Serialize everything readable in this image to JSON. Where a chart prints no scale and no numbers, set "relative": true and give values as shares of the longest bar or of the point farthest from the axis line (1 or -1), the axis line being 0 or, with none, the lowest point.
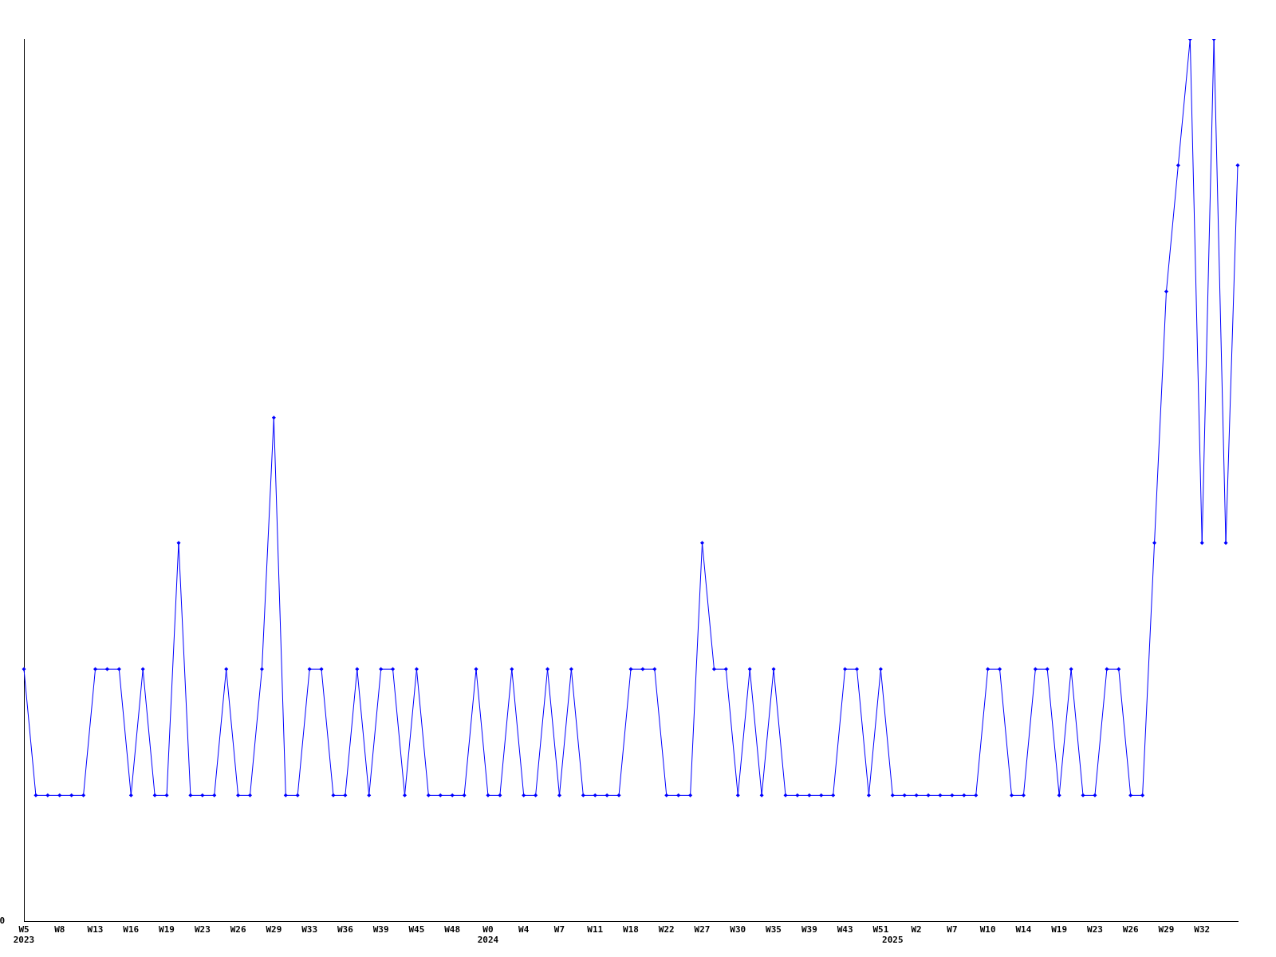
{
  "chart_data": {
    "type": "line",
    "relative": true,
    "marker": "diamond",
    "line_style": "solid",
    "grid": false,
    "legend": false,
    "annotations": [
      "0"
    ],
    "categories": [
      "W5\n2023",
      null,
      null,
      "W8",
      null,
      null,
      "W13",
      null,
      null,
      "W16",
      null,
      null,
      "W19",
      null,
      null,
      "W23",
      null,
      null,
      "W26",
      null,
      null,
      "W29",
      null,
      null,
      "W33",
      null,
      null,
      "W36",
      null,
      null,
      "W39",
      null,
      null,
      "W45",
      null,
      null,
      "W48",
      null,
      null,
      "W0\n2024",
      null,
      null,
      "W4",
      null,
      null,
      "W7",
      null,
      null,
      "W11",
      null,
      null,
      "W18",
      null,
      null,
      "W22",
      null,
      null,
      "W27",
      null,
      null,
      "W30",
      null,
      null,
      "W35",
      null,
      null,
      "W39",
      null,
      null,
      "W43",
      null,
      null,
      "W51",
      "\n2025",
      null,
      "W2",
      null,
      null,
      "W7",
      null,
      null,
      "W10",
      null,
      null,
      "W14",
      null,
      null,
      "W19",
      null,
      null,
      "W23",
      null,
      null,
      "W26",
      null,
      null,
      "W29",
      null,
      null,
      "W32",
      null,
      null,
      null
    ],
    "series": [
      {
        "color": "#0000ff",
        "values": [
          0.286,
          0.143,
          0.143,
          0.143,
          0.143,
          0.143,
          0.286,
          0.286,
          0.286,
          0.143,
          0.286,
          0.143,
          0.143,
          0.429,
          0.143,
          0.143,
          0.143,
          0.286,
          0.143,
          0.143,
          0.286,
          0.571,
          0.143,
          0.143,
          0.286,
          0.286,
          0.143,
          0.143,
          0.286,
          0.143,
          0.286,
          0.286,
          0.143,
          0.286,
          0.143,
          0.143,
          0.143,
          0.143,
          0.286,
          0.143,
          0.143,
          0.286,
          0.143,
          0.143,
          0.286,
          0.143,
          0.286,
          0.143,
          0.143,
          0.143,
          0.143,
          0.286,
          0.286,
          0.286,
          0.143,
          0.143,
          0.143,
          0.429,
          0.286,
          0.286,
          0.143,
          0.286,
          0.143,
          0.286,
          0.143,
          0.143,
          0.143,
          0.143,
          0.143,
          0.286,
          0.286,
          0.143,
          0.286,
          0.143,
          0.143,
          0.143,
          0.143,
          0.143,
          0.143,
          0.143,
          0.143,
          0.286,
          0.286,
          0.143,
          0.143,
          0.286,
          0.286,
          0.143,
          0.286,
          0.143,
          0.143,
          0.286,
          0.286,
          0.143,
          0.143,
          0.429,
          0.714,
          0.857,
          1,
          0.429,
          1,
          0.429,
          0.857
        ]
      }
    ]
  }
}
